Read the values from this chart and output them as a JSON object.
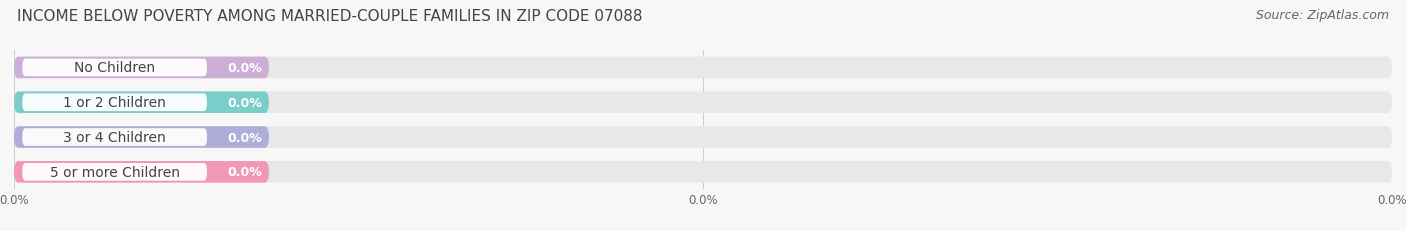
{
  "title": "INCOME BELOW POVERTY AMONG MARRIED-COUPLE FAMILIES IN ZIP CODE 07088",
  "source": "Source: ZipAtlas.com",
  "categories": [
    "No Children",
    "1 or 2 Children",
    "3 or 4 Children",
    "5 or more Children"
  ],
  "values": [
    0.0,
    0.0,
    0.0,
    0.0
  ],
  "bar_colors": [
    "#c9a8d4",
    "#6eccc6",
    "#a9a8d8",
    "#f48fb1"
  ],
  "background_color": "#f7f7f7",
  "bar_bg_color": "#e8e8e8",
  "title_fontsize": 11,
  "source_fontsize": 9,
  "label_fontsize": 10,
  "value_fontsize": 9,
  "figsize": [
    14.06,
    2.32
  ],
  "dpi": 100
}
